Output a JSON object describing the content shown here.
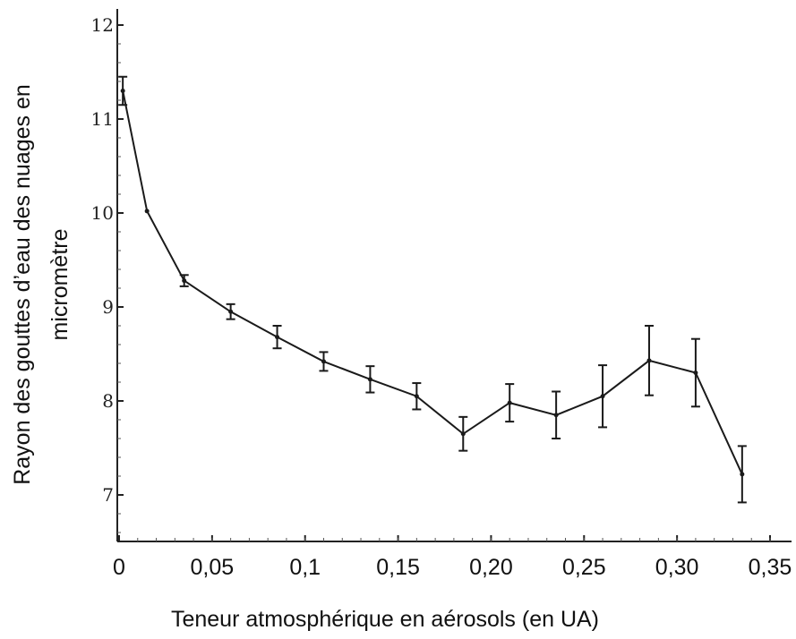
{
  "chart_data": {
    "type": "line",
    "xlabel": "Teneur atmosphérique en aérosols (en UA)",
    "ylabel_lines": [
      "Rayon des gouttes d’eau des nuages en",
      "micromètre"
    ],
    "xlim": [
      0,
      0.36
    ],
    "ylim": [
      6.5,
      12
    ],
    "x_ticks": [
      0,
      0.05,
      0.1,
      0.15,
      0.2,
      0.25,
      0.3,
      0.35
    ],
    "x_tick_labels": [
      "0",
      "0,05",
      "0,1",
      "0,15",
      "0,20",
      "0,25",
      "0,30",
      "0,35"
    ],
    "y_ticks": [
      7,
      8,
      9,
      10,
      11,
      12
    ],
    "y_tick_labels": [
      "7",
      "8",
      "9",
      "10",
      "11",
      "12"
    ],
    "grid": false,
    "series": [
      {
        "points": [
          {
            "x": 0.002,
            "y": 11.3,
            "err": 0.15
          },
          {
            "x": 0.015,
            "y": 10.02,
            "err": 0.0
          },
          {
            "x": 0.035,
            "y": 9.28,
            "err": 0.06
          },
          {
            "x": 0.06,
            "y": 8.95,
            "err": 0.08
          },
          {
            "x": 0.085,
            "y": 8.68,
            "err": 0.12
          },
          {
            "x": 0.11,
            "y": 8.42,
            "err": 0.1
          },
          {
            "x": 0.135,
            "y": 8.23,
            "err": 0.14
          },
          {
            "x": 0.16,
            "y": 8.05,
            "err": 0.14
          },
          {
            "x": 0.185,
            "y": 7.65,
            "err": 0.18
          },
          {
            "x": 0.21,
            "y": 7.98,
            "err": 0.2
          },
          {
            "x": 0.235,
            "y": 7.85,
            "err": 0.25
          },
          {
            "x": 0.26,
            "y": 8.05,
            "err": 0.33
          },
          {
            "x": 0.285,
            "y": 8.43,
            "err": 0.37
          },
          {
            "x": 0.31,
            "y": 8.3,
            "err": 0.36
          },
          {
            "x": 0.335,
            "y": 7.22,
            "err": 0.3
          }
        ]
      }
    ]
  }
}
